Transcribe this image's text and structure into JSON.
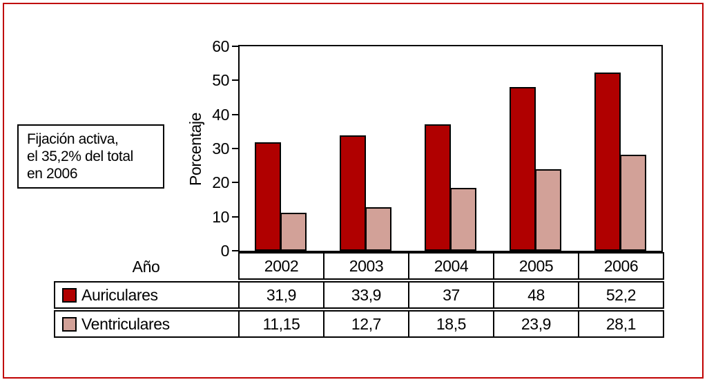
{
  "figure": {
    "annotation": {
      "lines": [
        "Fijación activa,",
        "el 35,2% del total",
        "en 2006"
      ]
    },
    "colors": {
      "frame_border": "#c00000",
      "auriculares": "#b00000",
      "ventriculares": "#d2a198",
      "axis": "#000000"
    }
  },
  "chart_data": {
    "type": "bar",
    "title": "",
    "categories": [
      "2002",
      "2003",
      "2004",
      "2005",
      "2006"
    ],
    "series": [
      {
        "name": "Auriculares",
        "color": "#b00000",
        "values": [
          31.9,
          33.9,
          37,
          48,
          52.2
        ],
        "labels": [
          "31,9",
          "33,9",
          "37",
          "48",
          "52,2"
        ]
      },
      {
        "name": "Ventriculares",
        "color": "#d2a198",
        "values": [
          11.15,
          12.7,
          18.5,
          23.9,
          28.1
        ],
        "labels": [
          "11,15",
          "12,7",
          "18,5",
          "23,9",
          "28,1"
        ]
      }
    ],
    "xlabel": "Año",
    "ylabel": "Porcentaje",
    "ylim": [
      0,
      60
    ],
    "yticks": [
      0,
      10,
      20,
      30,
      40,
      50,
      60
    ],
    "grid": false,
    "legend_position": "table-left"
  }
}
